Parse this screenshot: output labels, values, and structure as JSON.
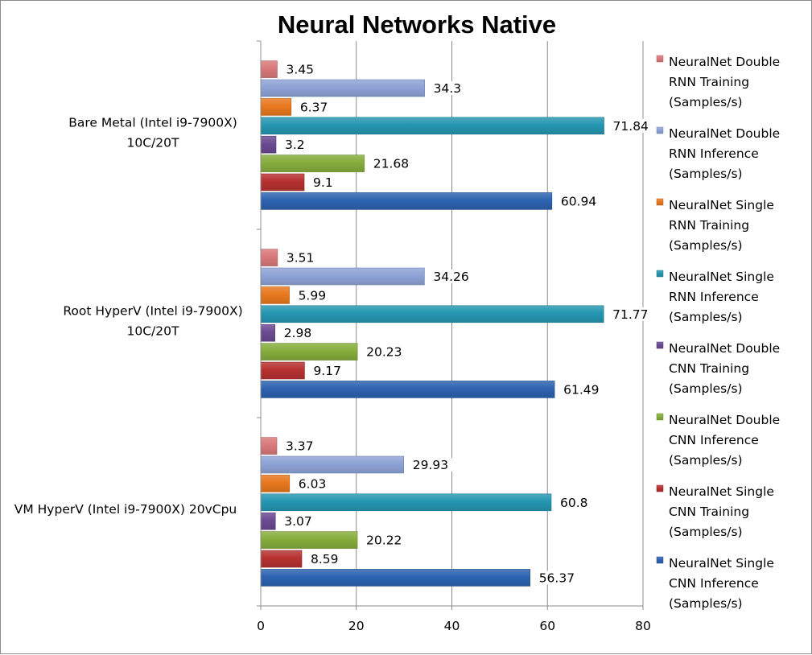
{
  "chart_data": {
    "type": "bar",
    "orientation": "horizontal",
    "title": "Neural Networks Native",
    "xlim": [
      0,
      80
    ],
    "x_ticks": [
      0,
      20,
      40,
      60,
      80
    ],
    "grid": "vertical major gridlines",
    "legend_position": "right",
    "categories": [
      [
        "Bare Metal (Intel i9-7900X)",
        "10C/20T"
      ],
      [
        "Root HyperV (Intel i9-7900X)",
        "10C/20T"
      ],
      [
        "VM HyperV (Intel i9-7900X) 20vCpu"
      ]
    ],
    "series": [
      {
        "name": [
          "NeuralNet Double",
          "RNN Training",
          "(Samples/s)"
        ],
        "color": "#d9787a",
        "values": [
          3.45,
          3.51,
          3.37
        ]
      },
      {
        "name": [
          "NeuralNet Double",
          "RNN Inference",
          "(Samples/s)"
        ],
        "color": "#8ea3d6",
        "values": [
          34.3,
          34.26,
          29.93
        ]
      },
      {
        "name": [
          "NeuralNet Single",
          "RNN Training",
          "(Samples/s)"
        ],
        "color": "#e8781e",
        "values": [
          6.37,
          5.99,
          6.03
        ]
      },
      {
        "name": [
          "NeuralNet Single",
          "RNN Inference",
          "(Samples/s)"
        ],
        "color": "#2596b1",
        "values": [
          71.84,
          71.77,
          60.8
        ]
      },
      {
        "name": [
          "NeuralNet Double",
          "CNN Training",
          "(Samples/s)"
        ],
        "color": "#6b4a92",
        "values": [
          3.2,
          2.98,
          3.07
        ]
      },
      {
        "name": [
          "NeuralNet Double",
          "CNN Inference",
          "(Samples/s)"
        ],
        "color": "#86ad3c",
        "values": [
          21.68,
          20.23,
          20.22
        ]
      },
      {
        "name": [
          "NeuralNet Single",
          "CNN Training",
          "(Samples/s)"
        ],
        "color": "#b63131",
        "values": [
          9.1,
          9.17,
          8.59
        ]
      },
      {
        "name": [
          "NeuralNet Single",
          "CNN Inference",
          "(Samples/s)"
        ],
        "color": "#2c63b0",
        "values": [
          60.94,
          61.49,
          56.37
        ]
      }
    ]
  }
}
